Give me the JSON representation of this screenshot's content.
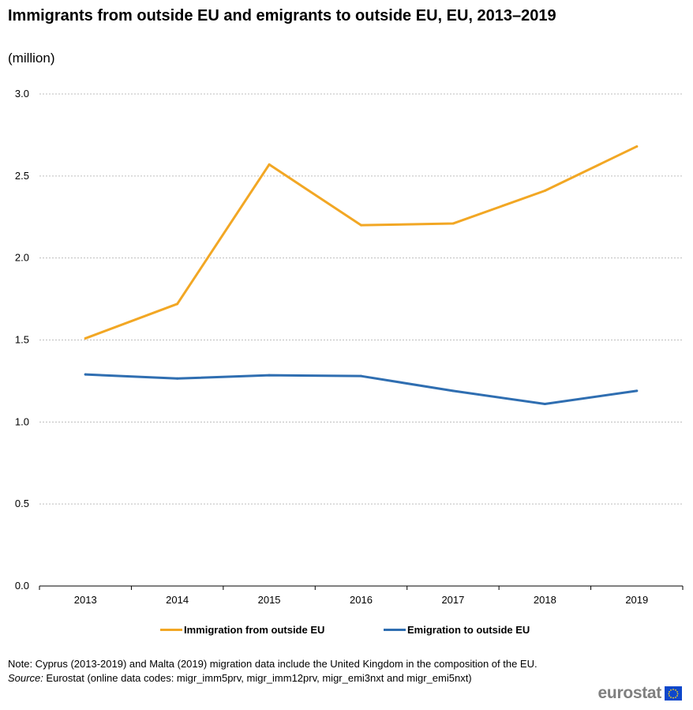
{
  "header": {
    "title": "Immigrants from outside EU and emigrants to outside EU,  EU, 2013–2019",
    "subtitle": "(million)"
  },
  "chart_data": {
    "type": "line",
    "title": "Immigrants from outside EU and emigrants to outside EU,  EU, 2013–2019",
    "ylabel": "(million)",
    "xlabel": "",
    "categories": [
      "2013",
      "2014",
      "2015",
      "2016",
      "2017",
      "2018",
      "2019"
    ],
    "y_ticks": [
      "0.0",
      "0.5",
      "1.0",
      "1.5",
      "2.0",
      "2.5",
      "3.0"
    ],
    "ylim": [
      0,
      3.0
    ],
    "grid": true,
    "legend_position": "bottom",
    "series": [
      {
        "name": "Immigration from outside EU",
        "color": "#f2a724",
        "values": [
          1.51,
          1.72,
          2.57,
          2.2,
          2.21,
          2.41,
          2.68
        ]
      },
      {
        "name": "Emigration to outside EU",
        "color": "#2f6eb1",
        "values": [
          1.29,
          1.265,
          1.285,
          1.28,
          1.19,
          1.11,
          1.19
        ]
      }
    ]
  },
  "footer": {
    "note": "Note: Cyprus (2013-2019) and Malta (2019) migration data include the United Kingdom in the composition of the EU.",
    "source_label": "Source:",
    "source_text": " Eurostat (online data codes: migr_imm5prv, migr_imm12prv, migr_emi3nxt and migr_emi5nxt)",
    "logo_text": "eurostat"
  }
}
